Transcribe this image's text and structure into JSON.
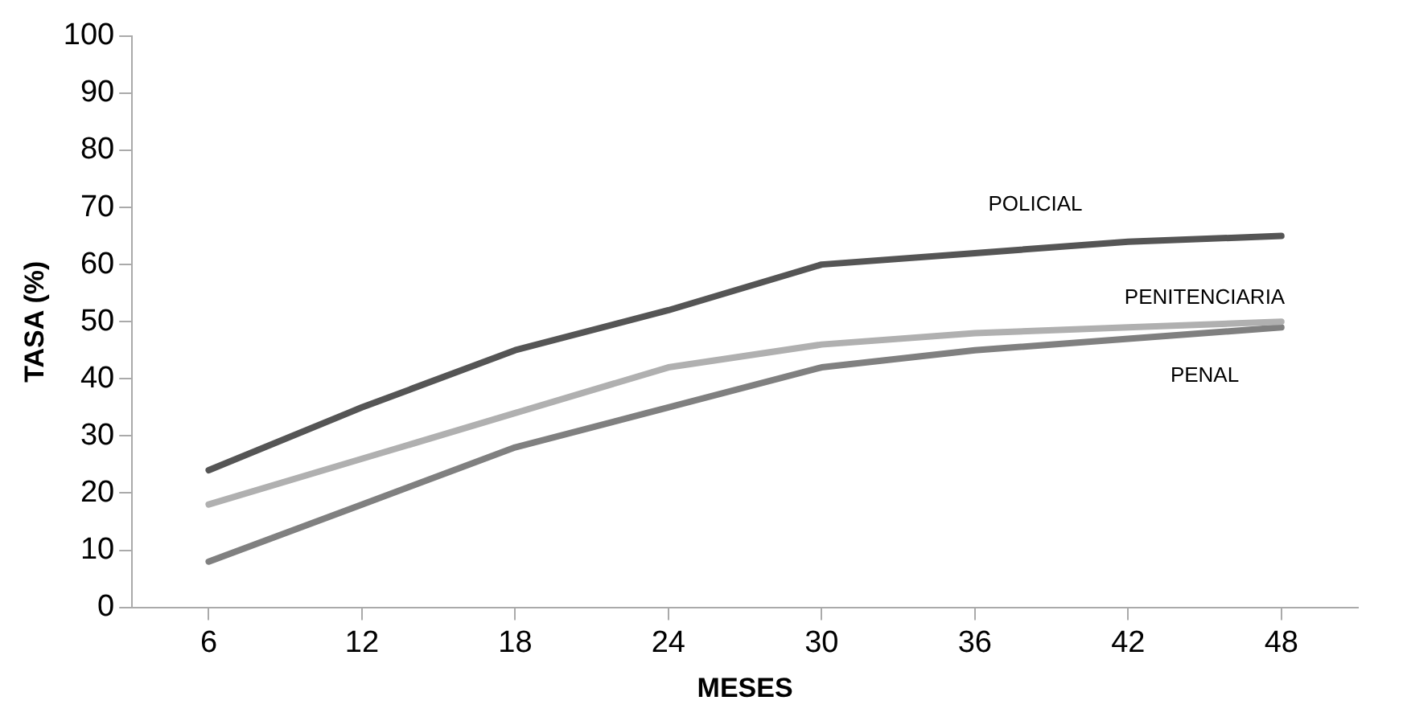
{
  "chart_data": {
    "type": "line",
    "xlabel": "MESES",
    "ylabel": "TASA (%)",
    "categories": [
      "6",
      "12",
      "18",
      "24",
      "30",
      "36",
      "42",
      "48"
    ],
    "series": [
      {
        "name": "POLICIAL",
        "color": "#555555",
        "values": [
          24,
          35,
          45,
          52,
          60,
          62,
          64,
          65
        ]
      },
      {
        "name": "PENITENCIARIA",
        "color": "#b0b0b0",
        "values": [
          18,
          26,
          34,
          42,
          46,
          48,
          49,
          50
        ]
      },
      {
        "name": "PENAL",
        "color": "#808080",
        "values": [
          8,
          18,
          28,
          35,
          42,
          45,
          47,
          49
        ]
      }
    ],
    "ylim": [
      0,
      100
    ],
    "yticks": [
      0,
      10,
      20,
      30,
      40,
      50,
      60,
      70,
      80,
      90,
      100
    ],
    "grid": false,
    "legend": false,
    "marker": "none",
    "line_style": "solid"
  }
}
